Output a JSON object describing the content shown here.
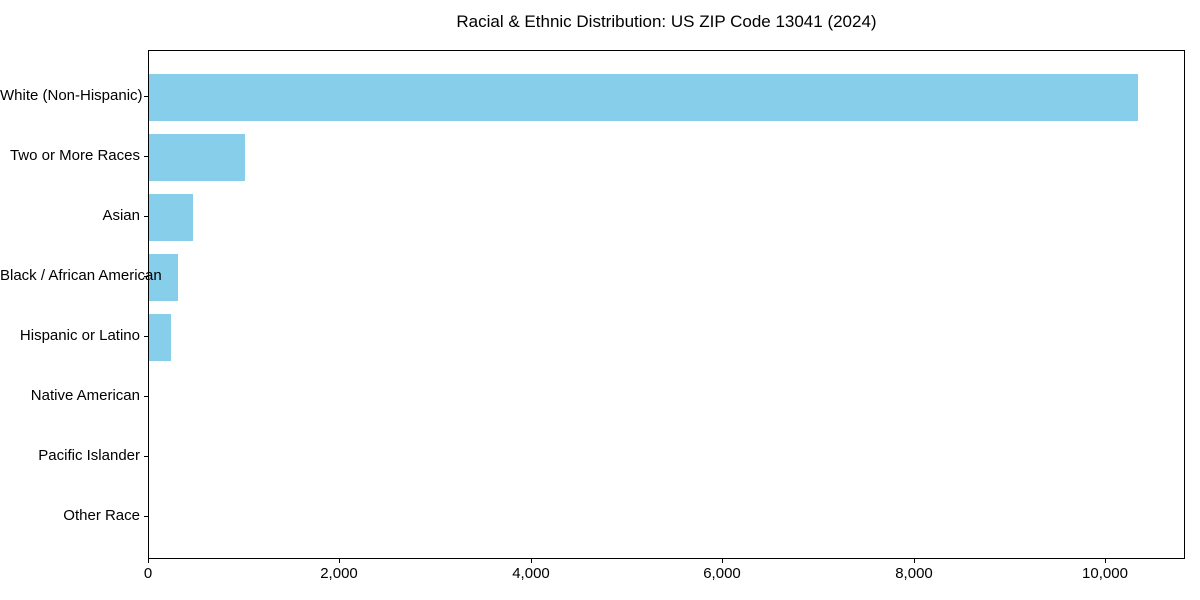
{
  "chart_data": {
    "type": "bar",
    "orientation": "horizontal",
    "title": "Racial & Ethnic Distribution: US ZIP Code 13041 (2024)",
    "categories": [
      "White (Non-Hispanic)",
      "Two or More Races",
      "Asian",
      "Black / African American",
      "Hispanic or Latino",
      "Native American",
      "Pacific Islander",
      "Other Race"
    ],
    "values": [
      10330,
      1000,
      460,
      305,
      230,
      0,
      0,
      0
    ],
    "xlabel": "",
    "ylabel": "",
    "xlim": [
      0,
      10836
    ],
    "x_ticks": [
      0,
      2000,
      4000,
      6000,
      8000,
      10000
    ],
    "x_tick_labels": [
      "0",
      "2,000",
      "4,000",
      "6,000",
      "8,000",
      "10,000"
    ],
    "bar_color": "#87CEEB",
    "text_color": "#000000",
    "grid": false,
    "legend": "none"
  }
}
